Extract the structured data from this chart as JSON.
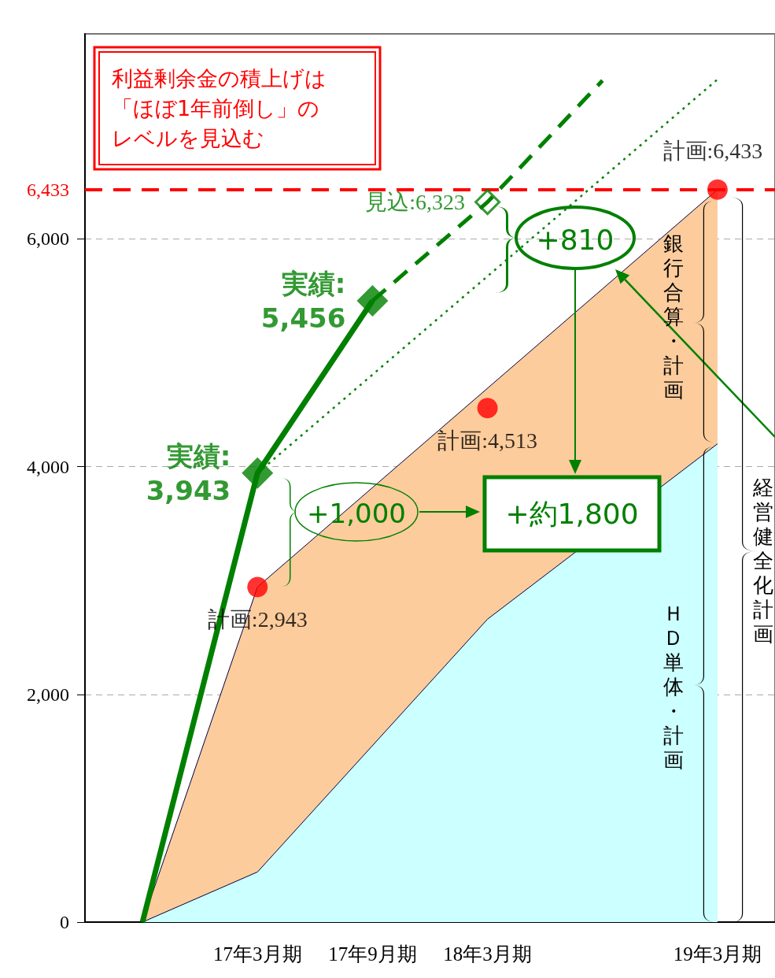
{
  "chart_data": {
    "type": "area",
    "categories": [
      null,
      "17年3月期",
      "17年9月期",
      "18年3月期",
      null,
      "19年3月期"
    ],
    "ylim": [
      0,
      7800
    ],
    "yticks": [
      0,
      {
        "value": 2000,
        "label": "2,000"
      },
      {
        "value": 4000,
        "label": "4,000"
      },
      {
        "value": 6000,
        "label": "6,000"
      }
    ],
    "grid": "y",
    "series": [
      {
        "color": "#fccc9c",
        "values": [
          0,
          2943,
          null,
          null,
          null,
          6433
        ]
      },
      {
        "color": "#ccffff",
        "values": [
          0,
          440,
          null,
          2660,
          null,
          4200
        ]
      },
      {
        "type": "line",
        "color": "#008000",
        "line_style": "dotted",
        "values": [
          null,
          3943,
          null,
          null,
          null,
          7400
        ]
      },
      {
        "type": "line",
        "color": "#008000",
        "line_style": "dashed",
        "values": [
          null,
          null,
          5456,
          6323,
          7390,
          null
        ]
      },
      {
        "type": "line",
        "color": "#008000",
        "line_style": "solid",
        "values": [
          0,
          3943,
          5456,
          null,
          null,
          null
        ]
      },
      {
        "type": "scatter",
        "color": "#008000",
        "marker": "diamond",
        "values": [
          null,
          3943,
          5456,
          null,
          null,
          null
        ],
        "value_labels": [
          null,
          "実績:\n3,943",
          "実績:\n5,456",
          null,
          null,
          null
        ]
      },
      {
        "type": "scatter",
        "color": "#ffffff",
        "marker": "diamond",
        "values": [
          null,
          null,
          null,
          6323,
          null,
          null
        ],
        "value_labels": [
          null,
          null,
          null,
          "見込:6,323",
          null,
          null
        ]
      },
      {
        "type": "scatter",
        "color": "#ff0000",
        "marker": "circle",
        "values": [
          null,
          2943,
          null,
          4513,
          null,
          6433
        ],
        "value_labels": [
          null,
          "計画:2,943",
          null,
          "計画:4,513",
          null,
          "計画:6,433"
        ]
      }
    ],
    "ref_lines": [
      {
        "axis": "y",
        "value": 6433,
        "label": "6,433",
        "color": "#ff0000",
        "line_style": "dashed"
      }
    ],
    "annotations": [
      "利益剰余金の積上げは「ほぼ1年前倒し」のレベルを見込む",
      "+810",
      "+1,000",
      "+約1,800",
      "銀行合算・計画",
      "ＨＤ単体・計画",
      "経営健全化計画"
    ]
  }
}
